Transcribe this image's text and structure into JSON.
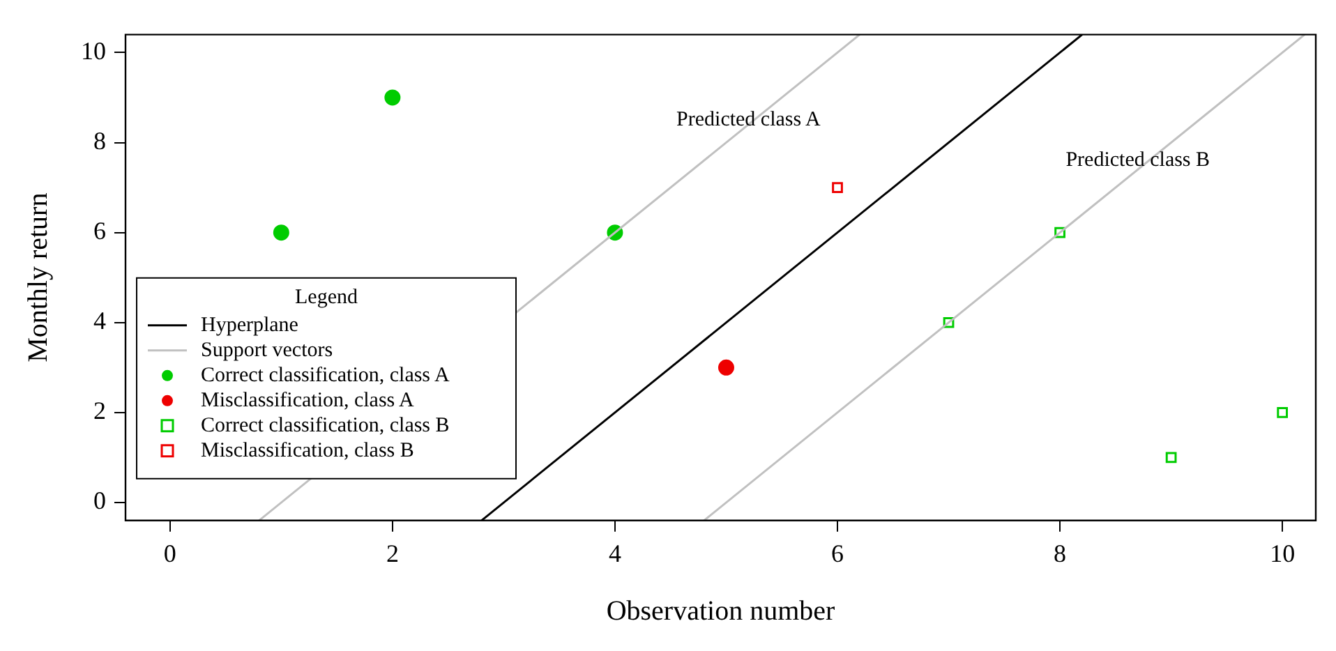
{
  "chart_data": {
    "type": "scatter",
    "xlabel": "Observation number",
    "ylabel": "Monthly return",
    "legend_title": "Legend",
    "xlim": [
      -0.4,
      10.3
    ],
    "ylim": [
      -0.4,
      10.4
    ],
    "xticks": [
      0,
      2,
      4,
      6,
      8,
      10
    ],
    "yticks": [
      0,
      2,
      4,
      6,
      8,
      10
    ],
    "grid": false,
    "legend": "bottom left",
    "annotations": [
      {
        "text": "Predicted class A",
        "x": 5.2,
        "y": 8.5
      },
      {
        "text": "Predicted class B",
        "x": 8.7,
        "y": 7.6
      }
    ],
    "series": [
      {
        "name": "Hyperplane",
        "type": "line",
        "color": "#000000",
        "marker": "none",
        "x": [
          2.8,
          8.2
        ],
        "values": [
          -0.4,
          10.4
        ]
      },
      {
        "name": "Support vectors",
        "type": "line",
        "color": "#c0c0c0",
        "marker": "none",
        "x": [
          0.8,
          6.2
        ],
        "values": [
          -0.4,
          10.4
        ]
      },
      {
        "type": "line",
        "color": "#c0c0c0",
        "marker": "none",
        "x": [
          4.8,
          10.2
        ],
        "values": [
          -0.4,
          10.4
        ]
      },
      {
        "name": "Correct classification, class A",
        "type": "scatter",
        "color": "#00cc00",
        "marker": "circle",
        "x": [
          1,
          2,
          4
        ],
        "values": [
          6,
          9,
          6
        ]
      },
      {
        "name": "Misclassification, class A",
        "type": "scatter",
        "color": "#ee0000",
        "marker": "circle",
        "x": [
          5
        ],
        "values": [
          3
        ]
      },
      {
        "name": "Correct classification, class B",
        "type": "scatter",
        "color": "#00cc00",
        "marker": "square",
        "x": [
          7,
          8,
          9,
          10
        ],
        "values": [
          4,
          6,
          1,
          2
        ]
      },
      {
        "name": "Misclassification, class B",
        "type": "scatter",
        "color": "#ee0000",
        "marker": "square",
        "x": [
          6
        ],
        "values": [
          7
        ]
      }
    ]
  }
}
